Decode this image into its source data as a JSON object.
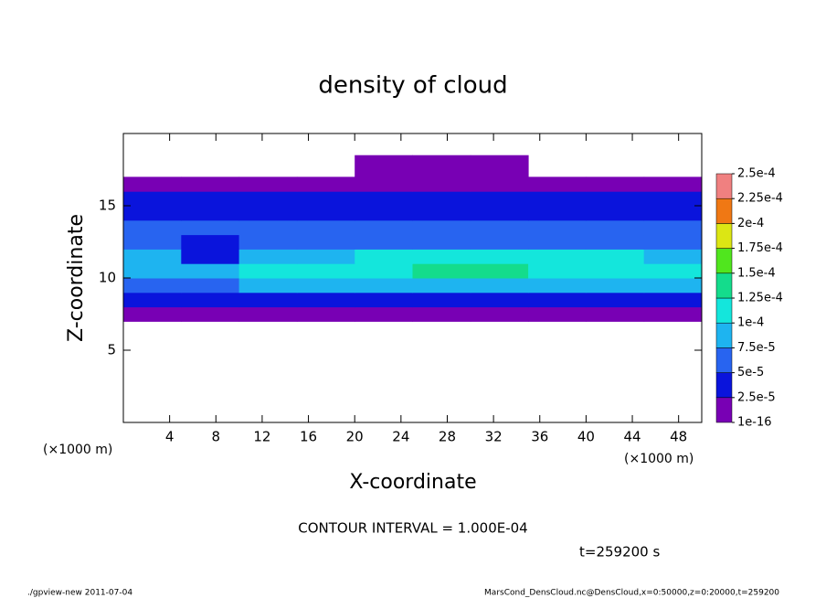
{
  "chart_data": {
    "type": "heatmap",
    "title": "density of cloud",
    "x_label": "X-coordinate",
    "y_label": "Z-coordinate",
    "x_unit": "(×1000 m)",
    "xlim": [
      0,
      50
    ],
    "ylim": [
      0,
      20
    ],
    "xticks": [
      4,
      8,
      12,
      16,
      20,
      24,
      28,
      32,
      36,
      40,
      44,
      48
    ],
    "yticks": [
      5,
      10,
      15
    ],
    "x_edges": [
      0,
      5,
      10,
      15,
      20,
      25,
      30,
      35,
      40,
      45,
      50
    ],
    "y_edges": [
      7,
      8,
      9,
      10,
      11,
      12,
      13,
      14,
      15,
      16,
      17,
      18.5
    ],
    "values": [
      [
        1e-05,
        1e-05,
        1e-05,
        1e-05,
        1e-05,
        1e-05,
        1e-05,
        1e-05,
        1e-05,
        1e-05
      ],
      [
        3e-05,
        3e-05,
        3e-05,
        3e-05,
        4e-05,
        4e-05,
        4e-05,
        3e-05,
        3e-05,
        3e-05
      ],
      [
        7e-05,
        7e-05,
        8e-05,
        9e-05,
        9e-05,
        9e-05,
        9e-05,
        8e-05,
        8e-05,
        8e-05
      ],
      [
        9e-05,
        8e-05,
        0.0001,
        0.00011,
        0.00012,
        0.00013,
        0.00013,
        0.00012,
        0.00012,
        0.00011
      ],
      [
        8e-05,
        4e-05,
        8e-05,
        9e-05,
        0.0001,
        0.0001,
        0.00011,
        0.00011,
        0.0001,
        9e-05
      ],
      [
        6e-05,
        4e-05,
        6e-05,
        7e-05,
        7e-05,
        6e-05,
        7e-05,
        7e-05,
        7e-05,
        7e-05
      ],
      [
        5e-05,
        5e-05,
        6e-05,
        6e-05,
        5e-05,
        5e-05,
        6e-05,
        6e-05,
        6e-05,
        5e-05
      ],
      [
        4e-05,
        4e-05,
        4e-05,
        4e-05,
        4e-05,
        4e-05,
        4e-05,
        4e-05,
        4e-05,
        4e-05
      ],
      [
        3e-05,
        3e-05,
        3e-05,
        3e-05,
        3e-05,
        3e-05,
        3e-05,
        3e-05,
        3e-05,
        3e-05
      ],
      [
        1e-05,
        1e-05,
        1e-05,
        1e-05,
        1e-05,
        1e-05,
        1e-05,
        1e-05,
        1e-05,
        1e-05
      ],
      [
        null,
        null,
        null,
        null,
        1e-05,
        1e-05,
        1e-05,
        null,
        null,
        null
      ]
    ],
    "levels": [
      {
        "value": 1e-16,
        "label": "1e-16"
      },
      {
        "value": 2.5e-05,
        "label": "2.5e-5"
      },
      {
        "value": 5e-05,
        "label": "5e-5"
      },
      {
        "value": 7.5e-05,
        "label": "7.5e-5"
      },
      {
        "value": 0.0001,
        "label": "1e-4"
      },
      {
        "value": 0.000125,
        "label": "1.25e-4"
      },
      {
        "value": 0.00015,
        "label": "1.5e-4"
      },
      {
        "value": 0.000175,
        "label": "1.75e-4"
      },
      {
        "value": 0.0002,
        "label": "2e-4"
      },
      {
        "value": 0.000225,
        "label": "2.25e-4"
      },
      {
        "value": 0.00025,
        "label": "2.5e-4"
      }
    ],
    "colors": [
      "#7800b4",
      "#0a14dc",
      "#2864f0",
      "#1eb4f0",
      "#14e6dc",
      "#14dc8c",
      "#50e61e",
      "#dce614",
      "#f07814",
      "#f08080"
    ],
    "contour_note": "CONTOUR INTERVAL = 1.000E-04",
    "time_note": "t=259200 s",
    "footer_left": "./gpview-new  2011-07-04",
    "footer_right": "MarsCond_DensCloud.nc@DensCloud,x=0:50000,z=0:20000,t=259200"
  }
}
